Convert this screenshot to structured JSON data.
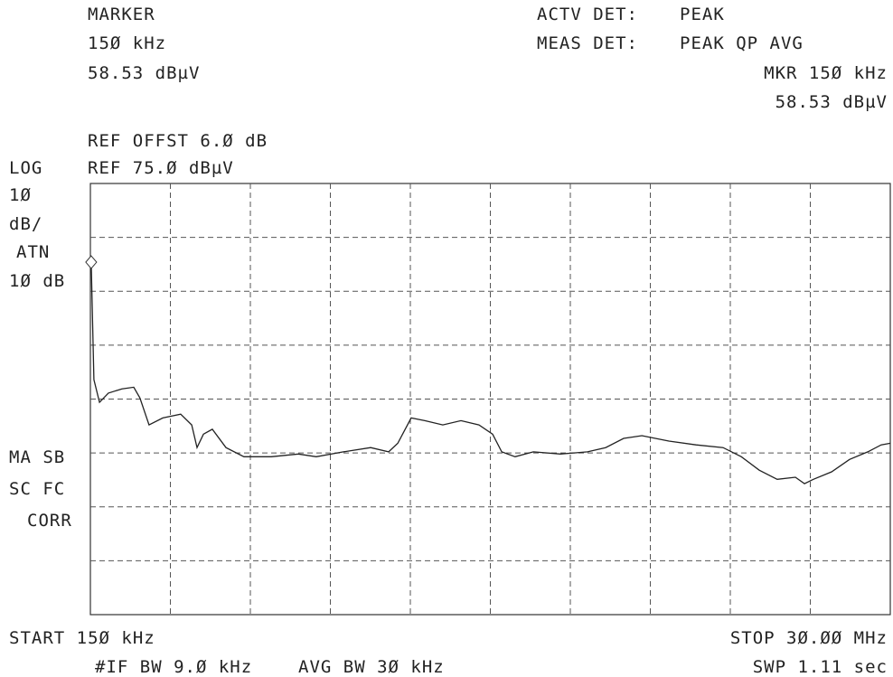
{
  "header": {
    "marker_label": "MARKER",
    "marker_freq": "15Ø kHz",
    "marker_level": "58.53 dBµV",
    "actv_det_label": "ACTV DET:",
    "actv_det": "PEAK",
    "meas_det_label": "MEAS DET:",
    "meas_det": "PEAK QP AVG",
    "mkr_freq": "MKR 15Ø kHz",
    "mkr_level": "58.53 dBµV",
    "ref_offset": "REF OFFST 6.Ø dB",
    "ref_level": "REF 75.Ø dBµV"
  },
  "left_labels": {
    "scale": "LOG",
    "div_value": "1Ø",
    "div_unit": "dB/",
    "atn_label": "ATN",
    "atn": "1Ø dB",
    "ma_sb": "MA SB",
    "sc_fc": "SC FC",
    "corr": "CORR"
  },
  "footer": {
    "start": "START 15Ø kHz",
    "stop": "STOP 3Ø.ØØ MHz",
    "if_bw": "#IF BW 9.Ø kHz",
    "avg_bw": "AVG BW 3Ø kHz",
    "sweep": "SWP 1.11  sec"
  },
  "chart_data": {
    "type": "line",
    "color": "#222",
    "xlim": [
      0.15,
      30
    ],
    "ylim": [
      -5,
      75
    ],
    "x": [
      0.18,
      0.28,
      0.49,
      0.82,
      1.33,
      1.77,
      2.0,
      2.34,
      2.85,
      3.52,
      3.93,
      4.13,
      4.37,
      4.7,
      5.21,
      5.88,
      6.9,
      7.91,
      8.58,
      9.59,
      10.61,
      11.28,
      11.62,
      12.12,
      12.63,
      13.3,
      13.98,
      14.65,
      15.16,
      15.5,
      16.0,
      16.68,
      17.69,
      18.7,
      19.38,
      20.05,
      20.73,
      21.74,
      22.75,
      23.76,
      24.44,
      25.11,
      25.78,
      26.46,
      26.8,
      27.13,
      27.81,
      28.48,
      29.16,
      29.66,
      30.0
    ],
    "values": [
      60.4,
      38.6,
      34.4,
      36.1,
      36.9,
      37.2,
      35.2,
      30.2,
      31.5,
      32.2,
      30.2,
      26.0,
      28.5,
      29.4,
      26.0,
      24.3,
      24.3,
      24.8,
      24.3,
      25.2,
      26.0,
      25.2,
      26.8,
      31.5,
      31.0,
      30.2,
      31.0,
      30.2,
      28.5,
      25.2,
      24.3,
      25.2,
      24.8,
      25.2,
      26.0,
      27.7,
      28.2,
      27.2,
      26.5,
      26.0,
      24.3,
      21.8,
      20.1,
      20.5,
      19.3,
      20.1,
      21.5,
      23.8,
      25.2,
      26.5,
      26.8
    ]
  }
}
